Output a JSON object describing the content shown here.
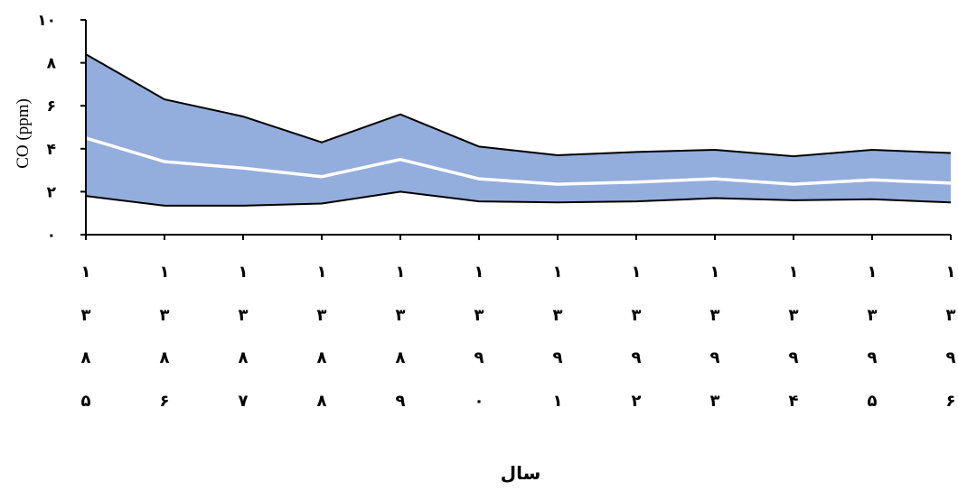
{
  "chart_data": {
    "type": "area",
    "xlabel": "سال",
    "ylabel": "CO (ppm)",
    "ylim": [
      0,
      10
    ],
    "y_ticks": [
      0,
      2,
      4,
      6,
      8,
      10
    ],
    "y_tick_labels": [
      "۰",
      "۲",
      "۴",
      "۶",
      "۸",
      "۱۰"
    ],
    "categories": [
      "1385",
      "1386",
      "1387",
      "1388",
      "1389",
      "1390",
      "1391",
      "1392",
      "1393",
      "1394",
      "1395",
      "1396"
    ],
    "category_tick_labels": [
      [
        "۱",
        "۳",
        "۸",
        "۵"
      ],
      [
        "۱",
        "۳",
        "۸",
        "۶"
      ],
      [
        "۱",
        "۳",
        "۸",
        "۷"
      ],
      [
        "۱",
        "۳",
        "۸",
        "۸"
      ],
      [
        "۱",
        "۳",
        "۸",
        "۹"
      ],
      [
        "۱",
        "۳",
        "۹",
        "۰"
      ],
      [
        "۱",
        "۳",
        "۹",
        "۱"
      ],
      [
        "۱",
        "۳",
        "۹",
        "۲"
      ],
      [
        "۱",
        "۳",
        "۹",
        "۳"
      ],
      [
        "۱",
        "۳",
        "۹",
        "۴"
      ],
      [
        "۱",
        "۳",
        "۹",
        "۵"
      ],
      [
        "۱",
        "۳",
        "۹",
        "۶"
      ]
    ],
    "series": [
      {
        "role": "upper",
        "values": [
          8.4,
          6.3,
          5.5,
          4.3,
          5.6,
          4.1,
          3.7,
          3.85,
          3.95,
          3.65,
          3.95,
          3.8
        ]
      },
      {
        "role": "middle",
        "values": [
          4.5,
          3.4,
          3.1,
          2.7,
          3.5,
          2.6,
          2.35,
          2.45,
          2.6,
          2.35,
          2.55,
          2.4
        ]
      },
      {
        "role": "lower",
        "values": [
          1.8,
          1.35,
          1.35,
          1.45,
          2.0,
          1.55,
          1.5,
          1.55,
          1.7,
          1.6,
          1.65,
          1.5
        ]
      }
    ],
    "colors": {
      "band": "#93ADDC",
      "middle_line": "#FFFFFF",
      "outline": "#000000"
    },
    "grid": false,
    "legend": "none"
  }
}
